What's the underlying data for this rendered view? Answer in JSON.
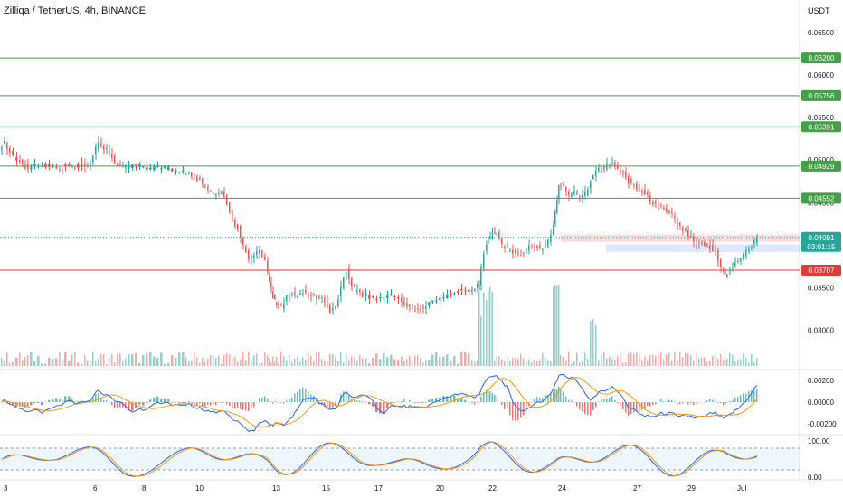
{
  "header": {
    "title": "Zilliqa / TetherUS, 4h, BINANCE",
    "unit": "USDT"
  },
  "chart_data": {
    "type": "candlestick",
    "price_axis": {
      "range": [
        0.0255,
        0.0688
      ],
      "ticks": [
        "0.06500",
        "0.06000",
        "0.05500",
        "0.05000",
        "0.04500",
        "0.03500",
        "0.03000"
      ]
    },
    "x_axis": {
      "ticks": [
        "3",
        "6",
        "8",
        "10",
        "13",
        "15",
        "17",
        "20",
        "22",
        "24",
        "27",
        "29",
        "Jul"
      ]
    },
    "levels": [
      {
        "value": 0.062,
        "label": "0.06200",
        "color": "#43a047"
      },
      {
        "value": 0.05756,
        "label": "0.05756",
        "color": "#43a047"
      },
      {
        "value": 0.05391,
        "label": "0.05391",
        "color": "#43a047"
      },
      {
        "value": 0.04929,
        "label": "0.04929",
        "color": "#43a047"
      },
      {
        "value": 0.04552,
        "label": "0.04552",
        "color": "#43a047"
      },
      {
        "value": 0.03707,
        "label": "0.03707",
        "color": "#e53935"
      }
    ],
    "current_price": {
      "value": 0.04091,
      "label": "0.04091",
      "countdown": "03:01:15"
    },
    "price_path": [
      [
        0,
        0.0515
      ],
      [
        6,
        0.052
      ],
      [
        12,
        0.051
      ],
      [
        20,
        0.05
      ],
      [
        26,
        0.0495
      ],
      [
        32,
        0.049
      ],
      [
        40,
        0.0492
      ],
      [
        48,
        0.0495
      ],
      [
        56,
        0.0493
      ],
      [
        64,
        0.0492
      ],
      [
        70,
        0.0492
      ],
      [
        78,
        0.0494
      ],
      [
        84,
        0.0492
      ],
      [
        92,
        0.0495
      ],
      [
        98,
        0.0494
      ],
      [
        104,
        0.0505
      ],
      [
        110,
        0.0522
      ],
      [
        116,
        0.0515
      ],
      [
        122,
        0.0508
      ],
      [
        128,
        0.0498
      ],
      [
        134,
        0.0494
      ],
      [
        140,
        0.0492
      ],
      [
        148,
        0.0494
      ],
      [
        156,
        0.0493
      ],
      [
        164,
        0.0491
      ],
      [
        172,
        0.0491
      ],
      [
        180,
        0.0492
      ],
      [
        188,
        0.049
      ],
      [
        196,
        0.0488
      ],
      [
        204,
        0.0486
      ],
      [
        210,
        0.0484
      ],
      [
        216,
        0.048
      ],
      [
        222,
        0.0475
      ],
      [
        228,
        0.0468
      ],
      [
        234,
        0.0462
      ],
      [
        240,
        0.046
      ],
      [
        246,
        0.0462
      ],
      [
        252,
        0.045
      ],
      [
        258,
        0.043
      ],
      [
        264,
        0.042
      ],
      [
        270,
        0.04
      ],
      [
        276,
        0.0385
      ],
      [
        282,
        0.039
      ],
      [
        288,
        0.0395
      ],
      [
        294,
        0.038
      ],
      [
        298,
        0.0355
      ],
      [
        302,
        0.034
      ],
      [
        306,
        0.033
      ],
      [
        312,
        0.0328
      ],
      [
        318,
        0.0338
      ],
      [
        324,
        0.0342
      ],
      [
        330,
        0.034
      ],
      [
        336,
        0.0345
      ],
      [
        342,
        0.0342
      ],
      [
        348,
        0.034
      ],
      [
        354,
        0.0338
      ],
      [
        360,
        0.0335
      ],
      [
        366,
        0.0322
      ],
      [
        372,
        0.0328
      ],
      [
        378,
        0.035
      ],
      [
        384,
        0.037
      ],
      [
        390,
        0.0352
      ],
      [
        396,
        0.0345
      ],
      [
        402,
        0.0342
      ],
      [
        410,
        0.034
      ],
      [
        418,
        0.0338
      ],
      [
        426,
        0.034
      ],
      [
        434,
        0.0342
      ],
      [
        442,
        0.0336
      ],
      [
        448,
        0.033
      ],
      [
        454,
        0.0326
      ],
      [
        460,
        0.0324
      ],
      [
        466,
        0.0325
      ],
      [
        472,
        0.033
      ],
      [
        480,
        0.0335
      ],
      [
        488,
        0.0338
      ],
      [
        496,
        0.0342
      ],
      [
        504,
        0.0346
      ],
      [
        512,
        0.0348
      ],
      [
        520,
        0.0346
      ],
      [
        526,
        0.0349
      ],
      [
        530,
        0.0355
      ],
      [
        536,
        0.0392
      ],
      [
        540,
        0.0408
      ],
      [
        545,
        0.0415
      ],
      [
        550,
        0.0412
      ],
      [
        556,
        0.04
      ],
      [
        562,
        0.0395
      ],
      [
        568,
        0.0392
      ],
      [
        574,
        0.039
      ],
      [
        580,
        0.0392
      ],
      [
        586,
        0.0398
      ],
      [
        592,
        0.04
      ],
      [
        598,
        0.0396
      ],
      [
        604,
        0.04
      ],
      [
        610,
        0.041
      ],
      [
        614,
        0.044
      ],
      [
        618,
        0.047
      ],
      [
        624,
        0.0468
      ],
      [
        630,
        0.046
      ],
      [
        636,
        0.0462
      ],
      [
        642,
        0.0455
      ],
      [
        648,
        0.046
      ],
      [
        654,
        0.0475
      ],
      [
        660,
        0.0488
      ],
      [
        666,
        0.049
      ],
      [
        672,
        0.0493
      ],
      [
        678,
        0.0495
      ],
      [
        684,
        0.049
      ],
      [
        690,
        0.0485
      ],
      [
        696,
        0.0475
      ],
      [
        702,
        0.047
      ],
      [
        708,
        0.0465
      ],
      [
        714,
        0.046
      ],
      [
        720,
        0.0452
      ],
      [
        726,
        0.0448
      ],
      [
        732,
        0.0446
      ],
      [
        738,
        0.044
      ],
      [
        744,
        0.0435
      ],
      [
        750,
        0.0425
      ],
      [
        756,
        0.042
      ],
      [
        762,
        0.0412
      ],
      [
        768,
        0.0405
      ],
      [
        774,
        0.0402
      ],
      [
        780,
        0.04
      ],
      [
        786,
        0.0398
      ],
      [
        792,
        0.0392
      ],
      [
        798,
        0.0375
      ],
      [
        802,
        0.0365
      ],
      [
        808,
        0.037
      ],
      [
        814,
        0.038
      ],
      [
        820,
        0.0385
      ],
      [
        826,
        0.0392
      ],
      [
        832,
        0.04
      ],
      [
        838,
        0.0409
      ]
    ],
    "macd": {
      "range": [
        -0.0029,
        0.0029
      ],
      "ticks": [
        "0.00200",
        "0.00000",
        "-0.00200"
      ]
    },
    "stoch_rsi": {
      "range": [
        -5,
        115
      ],
      "ticks": [
        "100.00",
        "0.00"
      ],
      "band": [
        20,
        80
      ]
    }
  }
}
